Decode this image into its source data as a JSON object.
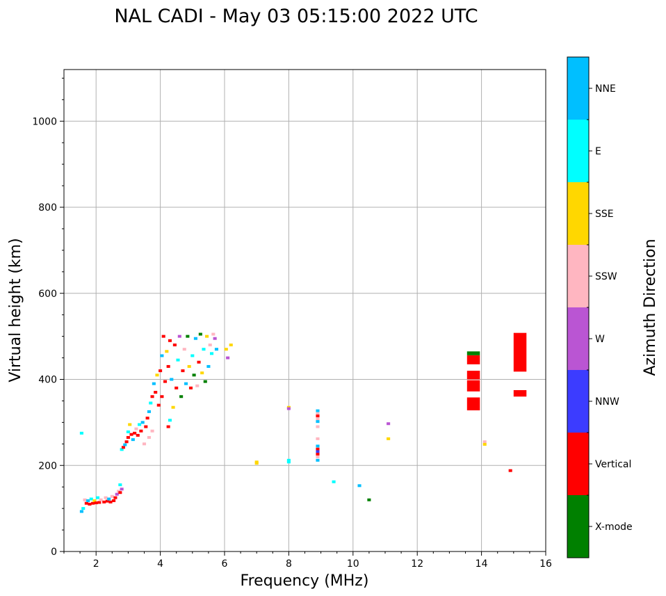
{
  "chart_data": {
    "type": "scatter",
    "title": "NAL CADI - May 03 05:15:00 2022 UTC",
    "xlabel": "Frequency (MHz)",
    "ylabel": "Virtual height (km)",
    "xlim": [
      1,
      16
    ],
    "ylim": [
      0,
      1120
    ],
    "xticks": [
      2,
      4,
      6,
      8,
      10,
      12,
      14,
      16
    ],
    "yticks": [
      0,
      200,
      400,
      600,
      800,
      1000
    ],
    "grid": true,
    "colorbar": {
      "label": "Azimuth Direction",
      "entries": [
        {
          "name": "X-mode",
          "color": "#008000"
        },
        {
          "name": "Vertical",
          "color": "#ff0000"
        },
        {
          "name": "NNW",
          "color": "#3c3cff"
        },
        {
          "name": "W",
          "color": "#ba55d3"
        },
        {
          "name": "SSW",
          "color": "#ffb6c1"
        },
        {
          "name": "SSE",
          "color": "#ffd700"
        },
        {
          "name": "E",
          "color": "#00ffff"
        },
        {
          "name": "NNE",
          "color": "#00bfff"
        }
      ]
    },
    "echoes": [
      {
        "freq": 1.55,
        "height": 275,
        "direction": "E"
      },
      {
        "freq": 1.55,
        "height": 93,
        "direction": "NNE"
      },
      {
        "freq": 1.6,
        "height": 100,
        "direction": "E"
      },
      {
        "freq": 1.65,
        "height": 120,
        "direction": "SSW"
      },
      {
        "freq": 1.7,
        "height": 112,
        "direction": "Vertical"
      },
      {
        "freq": 1.75,
        "height": 118,
        "direction": "NNE"
      },
      {
        "freq": 1.8,
        "height": 110,
        "direction": "Vertical"
      },
      {
        "freq": 1.85,
        "height": 122,
        "direction": "E"
      },
      {
        "freq": 1.9,
        "height": 112,
        "direction": "Vertical"
      },
      {
        "freq": 1.95,
        "height": 118,
        "direction": "SSE"
      },
      {
        "freq": 2.0,
        "height": 113,
        "direction": "Vertical"
      },
      {
        "freq": 2.05,
        "height": 125,
        "direction": "E"
      },
      {
        "freq": 2.1,
        "height": 114,
        "direction": "Vertical"
      },
      {
        "freq": 2.15,
        "height": 120,
        "direction": "SSW"
      },
      {
        "freq": 2.25,
        "height": 115,
        "direction": "Vertical"
      },
      {
        "freq": 2.3,
        "height": 125,
        "direction": "SSW"
      },
      {
        "freq": 2.35,
        "height": 117,
        "direction": "Vertical"
      },
      {
        "freq": 2.4,
        "height": 122,
        "direction": "NNE"
      },
      {
        "freq": 2.45,
        "height": 115,
        "direction": "Vertical"
      },
      {
        "freq": 2.5,
        "height": 128,
        "direction": "SSW"
      },
      {
        "freq": 2.55,
        "height": 118,
        "direction": "Vertical"
      },
      {
        "freq": 2.6,
        "height": 125,
        "direction": "Vertical"
      },
      {
        "freq": 2.65,
        "height": 133,
        "direction": "W"
      },
      {
        "freq": 2.7,
        "height": 140,
        "direction": "SSW"
      },
      {
        "freq": 2.75,
        "height": 137,
        "direction": "Vertical"
      },
      {
        "freq": 2.8,
        "height": 145,
        "direction": "W"
      },
      {
        "freq": 2.75,
        "height": 155,
        "direction": "E"
      },
      {
        "freq": 2.8,
        "height": 237,
        "direction": "E"
      },
      {
        "freq": 2.85,
        "height": 242,
        "direction": "Vertical"
      },
      {
        "freq": 2.9,
        "height": 248,
        "direction": "NNE"
      },
      {
        "freq": 2.95,
        "height": 255,
        "direction": "Vertical"
      },
      {
        "freq": 3.0,
        "height": 265,
        "direction": "Vertical"
      },
      {
        "freq": 3.0,
        "height": 278,
        "direction": "E"
      },
      {
        "freq": 3.05,
        "height": 295,
        "direction": "SSE"
      },
      {
        "freq": 3.1,
        "height": 272,
        "direction": "Vertical"
      },
      {
        "freq": 3.15,
        "height": 260,
        "direction": "NNE"
      },
      {
        "freq": 3.2,
        "height": 275,
        "direction": "Vertical"
      },
      {
        "freq": 3.25,
        "height": 285,
        "direction": "SSW"
      },
      {
        "freq": 3.3,
        "height": 270,
        "direction": "Vertical"
      },
      {
        "freq": 3.35,
        "height": 295,
        "direction": "E"
      },
      {
        "freq": 3.4,
        "height": 280,
        "direction": "Vertical"
      },
      {
        "freq": 3.45,
        "height": 300,
        "direction": "NNE"
      },
      {
        "freq": 3.5,
        "height": 250,
        "direction": "SSW"
      },
      {
        "freq": 3.55,
        "height": 290,
        "direction": "Vertical"
      },
      {
        "freq": 3.6,
        "height": 310,
        "direction": "Vertical"
      },
      {
        "freq": 3.65,
        "height": 265,
        "direction": "SSW"
      },
      {
        "freq": 3.65,
        "height": 325,
        "direction": "NNE"
      },
      {
        "freq": 3.7,
        "height": 345,
        "direction": "E"
      },
      {
        "freq": 3.75,
        "height": 280,
        "direction": "SSW"
      },
      {
        "freq": 3.75,
        "height": 360,
        "direction": "Vertical"
      },
      {
        "freq": 3.8,
        "height": 390,
        "direction": "NNE"
      },
      {
        "freq": 3.85,
        "height": 370,
        "direction": "Vertical"
      },
      {
        "freq": 3.9,
        "height": 410,
        "direction": "SSE"
      },
      {
        "freq": 3.95,
        "height": 340,
        "direction": "Vertical"
      },
      {
        "freq": 4.0,
        "height": 420,
        "direction": "Vertical"
      },
      {
        "freq": 4.05,
        "height": 455,
        "direction": "NNE"
      },
      {
        "freq": 4.05,
        "height": 360,
        "direction": "Vertical"
      },
      {
        "freq": 4.1,
        "height": 500,
        "direction": "Vertical"
      },
      {
        "freq": 4.15,
        "height": 395,
        "direction": "Vertical"
      },
      {
        "freq": 4.2,
        "height": 465,
        "direction": "SSE"
      },
      {
        "freq": 4.25,
        "height": 290,
        "direction": "Vertical"
      },
      {
        "freq": 4.25,
        "height": 430,
        "direction": "Vertical"
      },
      {
        "freq": 4.3,
        "height": 305,
        "direction": "E"
      },
      {
        "freq": 4.3,
        "height": 490,
        "direction": "Vertical"
      },
      {
        "freq": 4.35,
        "height": 400,
        "direction": "NNE"
      },
      {
        "freq": 4.4,
        "height": 335,
        "direction": "SSE"
      },
      {
        "freq": 4.45,
        "height": 480,
        "direction": "Vertical"
      },
      {
        "freq": 4.5,
        "height": 380,
        "direction": "Vertical"
      },
      {
        "freq": 4.55,
        "height": 445,
        "direction": "E"
      },
      {
        "freq": 4.6,
        "height": 500,
        "direction": "W"
      },
      {
        "freq": 4.65,
        "height": 360,
        "direction": "X-mode"
      },
      {
        "freq": 4.7,
        "height": 420,
        "direction": "Vertical"
      },
      {
        "freq": 4.75,
        "height": 470,
        "direction": "SSW"
      },
      {
        "freq": 4.8,
        "height": 390,
        "direction": "NNE"
      },
      {
        "freq": 4.85,
        "height": 500,
        "direction": "X-mode"
      },
      {
        "freq": 4.9,
        "height": 430,
        "direction": "SSE"
      },
      {
        "freq": 4.95,
        "height": 380,
        "direction": "Vertical"
      },
      {
        "freq": 5.0,
        "height": 455,
        "direction": "E"
      },
      {
        "freq": 5.05,
        "height": 410,
        "direction": "X-mode"
      },
      {
        "freq": 5.1,
        "height": 495,
        "direction": "NNE"
      },
      {
        "freq": 5.15,
        "height": 385,
        "direction": "SSW"
      },
      {
        "freq": 5.2,
        "height": 440,
        "direction": "Vertical"
      },
      {
        "freq": 5.25,
        "height": 505,
        "direction": "X-mode"
      },
      {
        "freq": 5.3,
        "height": 415,
        "direction": "SSE"
      },
      {
        "freq": 5.35,
        "height": 470,
        "direction": "E"
      },
      {
        "freq": 5.4,
        "height": 395,
        "direction": "X-mode"
      },
      {
        "freq": 5.45,
        "height": 500,
        "direction": "SSE"
      },
      {
        "freq": 5.5,
        "height": 430,
        "direction": "NNE"
      },
      {
        "freq": 5.55,
        "height": 480,
        "direction": "SSW"
      },
      {
        "freq": 5.6,
        "height": 460,
        "direction": "E"
      },
      {
        "freq": 5.65,
        "height": 505,
        "direction": "SSW"
      },
      {
        "freq": 5.7,
        "height": 495,
        "direction": "W"
      },
      {
        "freq": 5.75,
        "height": 470,
        "direction": "NNE"
      },
      {
        "freq": 6.05,
        "height": 470,
        "direction": "SSE"
      },
      {
        "freq": 6.1,
        "height": 450,
        "direction": "W"
      },
      {
        "freq": 6.2,
        "height": 480,
        "direction": "SSE"
      },
      {
        "freq": 7.0,
        "height": 208,
        "direction": "SSE"
      },
      {
        "freq": 7.0,
        "height": 205,
        "direction": "SSE"
      },
      {
        "freq": 8.0,
        "height": 335,
        "direction": "SSE"
      },
      {
        "freq": 8.0,
        "height": 332,
        "direction": "W"
      },
      {
        "freq": 8.0,
        "height": 212,
        "direction": "E"
      },
      {
        "freq": 8.0,
        "height": 208,
        "direction": "E"
      },
      {
        "freq": 8.9,
        "height": 327,
        "direction": "NNE"
      },
      {
        "freq": 8.9,
        "height": 320,
        "direction": "SSW"
      },
      {
        "freq": 8.9,
        "height": 315,
        "direction": "Vertical"
      },
      {
        "freq": 8.9,
        "height": 308,
        "direction": "SSW"
      },
      {
        "freq": 8.9,
        "height": 302,
        "direction": "NNE"
      },
      {
        "freq": 8.9,
        "height": 290,
        "direction": "SSW"
      },
      {
        "freq": 8.9,
        "height": 262,
        "direction": "SSW"
      },
      {
        "freq": 8.9,
        "height": 245,
        "direction": "NNE"
      },
      {
        "freq": 8.9,
        "height": 238,
        "direction": "Vertical"
      },
      {
        "freq": 8.9,
        "height": 232,
        "direction": "NNW"
      },
      {
        "freq": 8.9,
        "height": 226,
        "direction": "Vertical"
      },
      {
        "freq": 8.9,
        "height": 220,
        "direction": "SSW"
      },
      {
        "freq": 8.9,
        "height": 212,
        "direction": "NNE"
      },
      {
        "freq": 9.4,
        "height": 162,
        "direction": "E"
      },
      {
        "freq": 10.2,
        "height": 153,
        "direction": "NNE"
      },
      {
        "freq": 10.5,
        "height": 120,
        "direction": "X-mode"
      },
      {
        "freq": 11.1,
        "height": 297,
        "direction": "W"
      },
      {
        "freq": 11.1,
        "height": 262,
        "direction": "SSE"
      },
      {
        "freq": 14.1,
        "height": 255,
        "direction": "SSW"
      },
      {
        "freq": 14.1,
        "height": 249,
        "direction": "SSE"
      },
      {
        "freq": 14.9,
        "height": 188,
        "direction": "Vertical"
      }
    ],
    "blocks": [
      {
        "freq": 13.75,
        "h_low": 328,
        "h_high": 358,
        "direction": "Vertical"
      },
      {
        "freq": 13.75,
        "h_low": 372,
        "h_high": 398,
        "direction": "Vertical"
      },
      {
        "freq": 13.75,
        "h_low": 400,
        "h_high": 420,
        "direction": "Vertical"
      },
      {
        "freq": 13.75,
        "h_low": 435,
        "h_high": 456,
        "direction": "Vertical"
      },
      {
        "freq": 13.75,
        "h_low": 456,
        "h_high": 465,
        "direction": "X-mode"
      },
      {
        "freq": 15.2,
        "h_low": 360,
        "h_high": 375,
        "direction": "Vertical"
      },
      {
        "freq": 15.2,
        "h_low": 418,
        "h_high": 508,
        "direction": "Vertical"
      }
    ]
  }
}
